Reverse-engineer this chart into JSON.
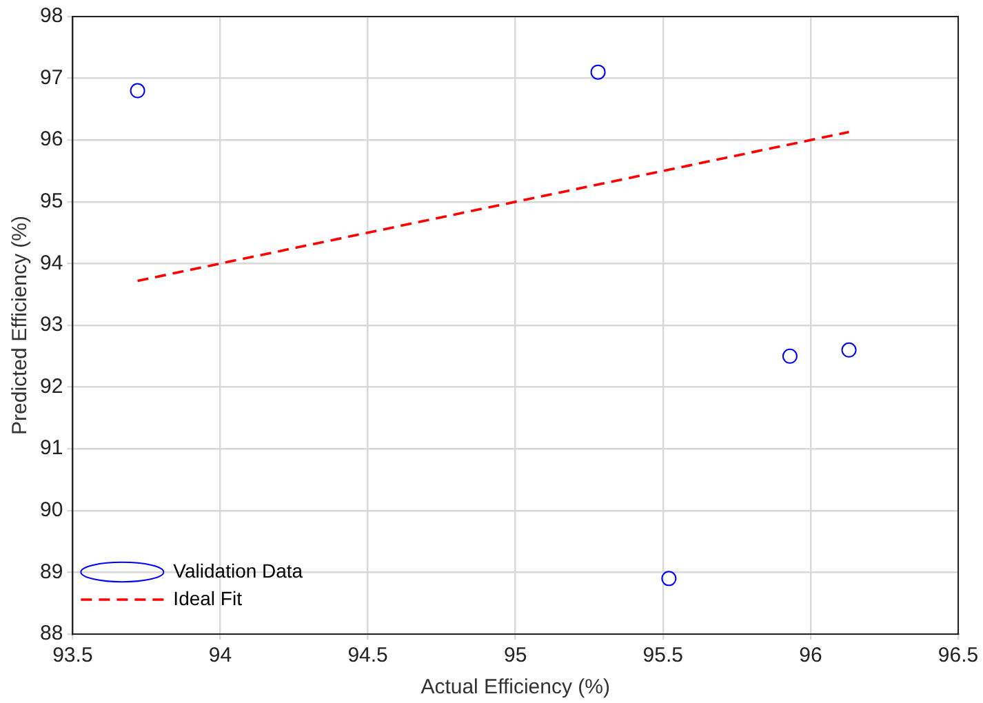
{
  "chart_data": {
    "type": "scatter",
    "xlabel": "Actual Efficiency (%)",
    "ylabel": "Predicted Efficiency (%)",
    "xlim": [
      93.5,
      96.5
    ],
    "xticks": [
      93.5,
      94,
      94.5,
      95,
      95.5,
      96,
      96.5
    ],
    "ylim": [
      88,
      98
    ],
    "yticks": [
      88,
      89,
      90,
      91,
      92,
      93,
      94,
      95,
      96,
      97,
      98
    ],
    "grid": true,
    "legend": "bottom left",
    "series": [
      {
        "name": "Validation Data",
        "type": "scatter",
        "color": "#0000ff",
        "marker": "circle",
        "x": [
          93.72,
          95.28,
          95.52,
          95.93,
          96.13
        ],
        "values": [
          96.8,
          97.1,
          88.9,
          92.5,
          92.6
        ]
      },
      {
        "name": "Ideal Fit",
        "type": "line",
        "color": "#ff0000",
        "line_style": "dashed",
        "marker": "none",
        "x": [
          93.72,
          96.13
        ],
        "values": [
          93.72,
          96.13
        ]
      }
    ]
  }
}
